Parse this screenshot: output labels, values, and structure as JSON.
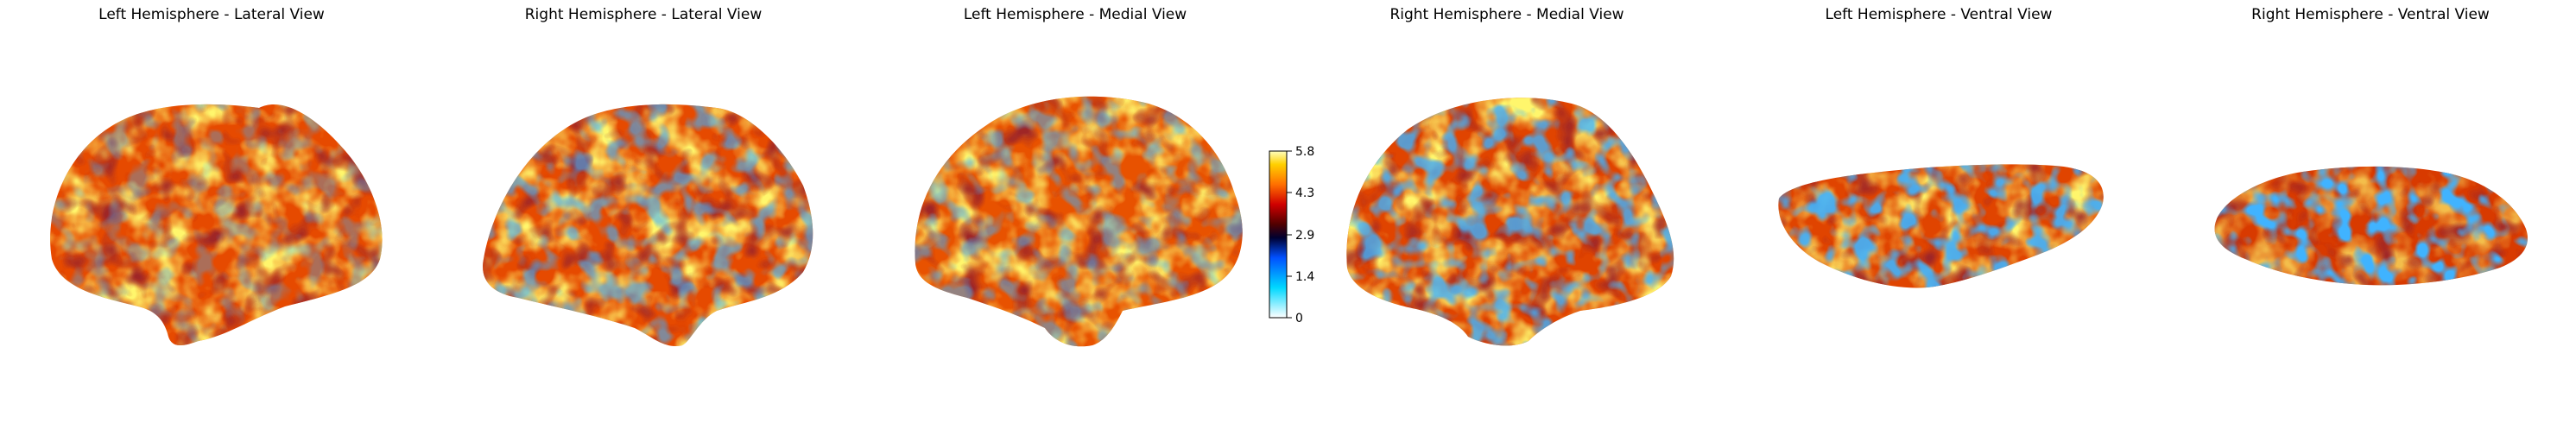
{
  "figure": {
    "panels": [
      {
        "title": "Left Hemisphere - Lateral View"
      },
      {
        "title": "Right Hemisphere - Lateral View"
      },
      {
        "title": "Left Hemisphere - Medial View"
      },
      {
        "title": "Right Hemisphere - Medial View"
      },
      {
        "title": "Left Hemisphere - Ventral View"
      },
      {
        "title": "Right Hemisphere - Ventral View"
      }
    ],
    "colorbar": {
      "ticks": [
        "5.8",
        "4.3",
        "2.9",
        "1.4",
        "0"
      ],
      "colormap": [
        "#ffffff",
        "#00d8ff",
        "#0050ff",
        "#000030",
        "#500000",
        "#d00000",
        "#ff7000",
        "#ffd000",
        "#ffffc0"
      ]
    },
    "colors": {
      "surface_base": "#e64a00",
      "title_text": "#000000"
    }
  }
}
